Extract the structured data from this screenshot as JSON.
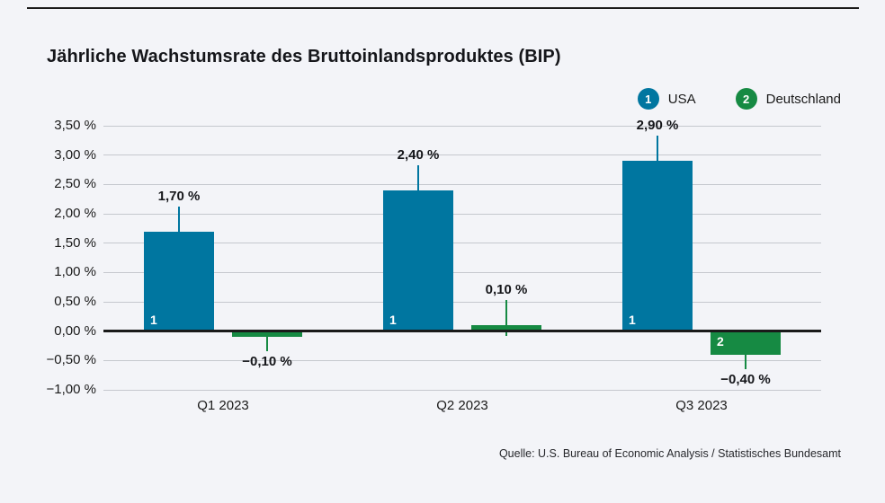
{
  "header": {
    "title": "Jährliche Wachstumsrate des Bruttoinlandsproduktes (BIP)"
  },
  "legend": [
    {
      "index": "1",
      "label": "USA",
      "color": "#0076a0"
    },
    {
      "index": "2",
      "label": "Deutschland",
      "color": "#168a43"
    }
  ],
  "footer": {
    "source": "Quelle: U.S. Bureau of Economic Analysis / Statistisches Bundesamt"
  },
  "colors": {
    "background": "#f3f4f8",
    "usa": "#0076a0",
    "deutschland": "#168a43",
    "grid": "#c5c8ce",
    "axis": "#1a1a1a",
    "text": "#1a1a1a"
  },
  "chart_data": {
    "type": "bar",
    "title": "Jährliche Wachstumsrate des Bruttoinlandsproduktes (BIP)",
    "categories": [
      "Q1 2023",
      "Q2 2023",
      "Q3 2023"
    ],
    "series": [
      {
        "name": "USA",
        "index": "1",
        "color": "#0076a0",
        "values": [
          1.7,
          2.4,
          2.9
        ],
        "labels": [
          "1,70 %",
          "2,40 %",
          "2,90 %"
        ]
      },
      {
        "name": "Deutschland",
        "index": "2",
        "color": "#168a43",
        "values": [
          -0.1,
          0.1,
          -0.4
        ],
        "labels": [
          "−0,10 %",
          "0,10 %",
          "−0,40 %"
        ]
      }
    ],
    "xlabel": "",
    "ylabel": "",
    "ylim": [
      -1.0,
      3.5
    ],
    "ytick_step": 0.5,
    "yticks": [
      "3,50 %",
      "3,00 %",
      "2,50 %",
      "2,00 %",
      "1,50 %",
      "1,00 %",
      "0,50 %",
      "0,00 %",
      "−0,50 %",
      "−1,00 %"
    ],
    "grid": true,
    "legend_position": "top-right"
  }
}
